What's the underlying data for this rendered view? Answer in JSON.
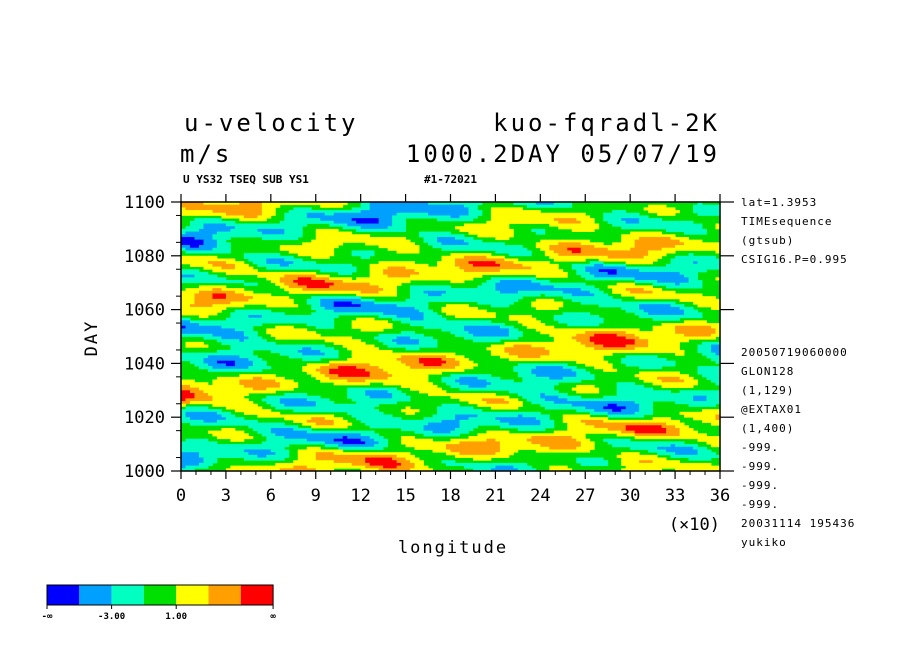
{
  "chart_data": {
    "type": "heatmap",
    "title_left": "u-velocity",
    "title_right": "kuo-fqradl-2K",
    "units": "m/s",
    "time_label": "1000.2DAY 05/07/19",
    "subtitle_left": "U YS32 TSEQ SUB YS1",
    "subtitle_right": "#1-72021",
    "xlabel": "longitude",
    "ylabel": "DAY",
    "x_multiplier": "(×10)",
    "xlim": [
      0,
      36
    ],
    "ylim": [
      1000,
      1100
    ],
    "x_ticks": [
      "0",
      "3",
      "6",
      "9",
      "12",
      "15",
      "18",
      "21",
      "24",
      "27",
      "30",
      "33",
      "36"
    ],
    "y_ticks": [
      "1000",
      "1020",
      "1040",
      "1060",
      "1080",
      "1100"
    ],
    "color_levels": [
      "#0000ff",
      "#00a0ff",
      "#00ffc0",
      "#00e000",
      "#ffff00",
      "#ffa000",
      "#ff0000"
    ],
    "colorbar_labels": [
      "-∞",
      "-3.00",
      "1.00",
      "∞"
    ],
    "side_info_top": [
      "lat=1.3953",
      "TIMEsequence",
      "(gtsub)",
      "CSIG16.P=0.995"
    ],
    "side_info_bottom": [
      "20050719060000",
      "GLON128",
      "(1,129)",
      "@EXTAX01",
      "(1,400)",
      "-999.",
      "-999.",
      "-999.",
      "-999.",
      "20031114 195436",
      "yukiko"
    ]
  }
}
